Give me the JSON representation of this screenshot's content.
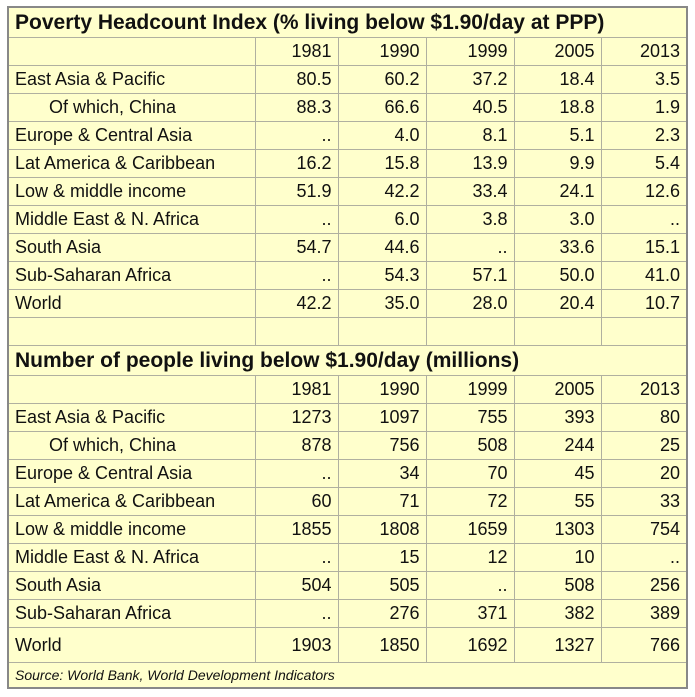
{
  "tables": [
    {
      "title": "Poverty Headcount Index (% living below $1.90/day at PPP)",
      "columns": [
        "1981",
        "1990",
        "1999",
        "2005",
        "2013"
      ],
      "rows": [
        {
          "label": "East Asia & Pacific",
          "values": [
            "80.5",
            "60.2",
            "37.2",
            "18.4",
            "3.5"
          ]
        },
        {
          "label": "Of which, China",
          "values": [
            "88.3",
            "66.6",
            "40.5",
            "18.8",
            "1.9"
          ]
        },
        {
          "label": "Europe & Central Asia",
          "values": [
            "..",
            "4.0",
            "8.1",
            "5.1",
            "2.3"
          ]
        },
        {
          "label": "Lat America & Caribbean",
          "values": [
            "16.2",
            "15.8",
            "13.9",
            "9.9",
            "5.4"
          ]
        },
        {
          "label": "Low & middle income",
          "values": [
            "51.9",
            "42.2",
            "33.4",
            "24.1",
            "12.6"
          ]
        },
        {
          "label": "Middle East & N. Africa",
          "values": [
            "..",
            "6.0",
            "3.8",
            "3.0",
            ".."
          ]
        },
        {
          "label": "South Asia",
          "values": [
            "54.7",
            "44.6",
            "..",
            "33.6",
            "15.1"
          ]
        },
        {
          "label": "Sub-Saharan Africa",
          "values": [
            "..",
            "54.3",
            "57.1",
            "50.0",
            "41.0"
          ]
        },
        {
          "label": "World",
          "values": [
            "42.2",
            "35.0",
            "28.0",
            "20.4",
            "10.7"
          ]
        }
      ]
    },
    {
      "title": "Number of people living below $1.90/day (millions)",
      "columns": [
        "1981",
        "1990",
        "1999",
        "2005",
        "2013"
      ],
      "rows": [
        {
          "label": "East Asia & Pacific",
          "values": [
            "1273",
            "1097",
            "755",
            "393",
            "80"
          ]
        },
        {
          "label": "Of which, China",
          "values": [
            "878",
            "756",
            "508",
            "244",
            "25"
          ]
        },
        {
          "label": "Europe & Central Asia",
          "values": [
            "..",
            "34",
            "70",
            "45",
            "20"
          ]
        },
        {
          "label": "Lat America & Caribbean",
          "values": [
            "60",
            "71",
            "72",
            "55",
            "33"
          ]
        },
        {
          "label": "Low & middle income",
          "values": [
            "1855",
            "1808",
            "1659",
            "1303",
            "754"
          ]
        },
        {
          "label": "Middle East & N. Africa",
          "values": [
            "..",
            "15",
            "12",
            "10",
            ".."
          ]
        },
        {
          "label": "South Asia",
          "values": [
            "504",
            "505",
            "..",
            "508",
            "256"
          ]
        },
        {
          "label": "Sub-Saharan Africa",
          "values": [
            "..",
            "276",
            "371",
            "382",
            "389"
          ]
        },
        {
          "label": "World",
          "values": [
            "1903",
            "1850",
            "1692",
            "1327",
            "766"
          ]
        }
      ]
    }
  ],
  "source": "Source: World Bank, World Development Indicators"
}
